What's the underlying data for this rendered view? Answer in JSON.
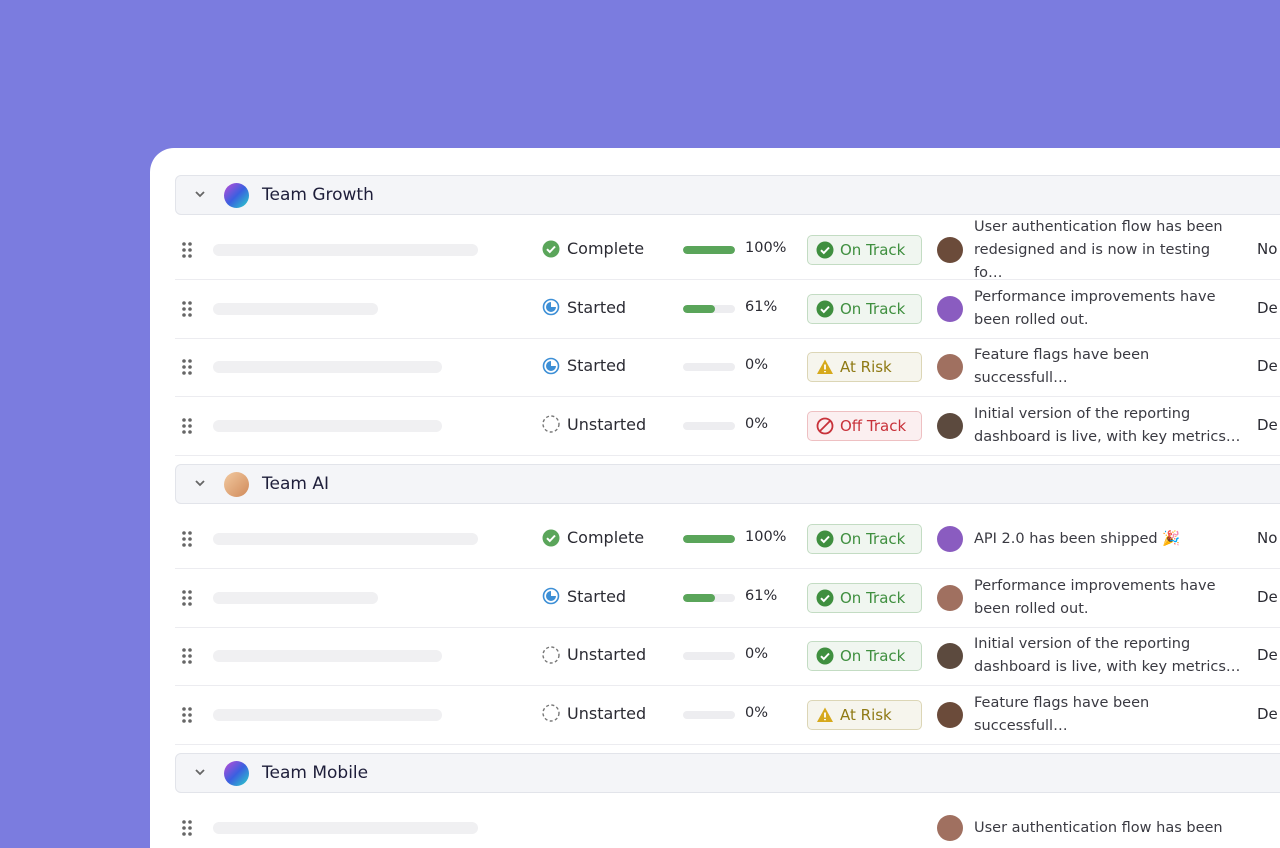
{
  "groups": [
    {
      "name": "Team Growth",
      "rows": [
        {
          "status": {
            "label": "Complete",
            "icon": "check",
            "color": "#5aa55a"
          },
          "progress": {
            "value": 100,
            "label": "100%"
          },
          "health": {
            "label": "On Track",
            "icon": "check",
            "color": "#3f8f3f"
          },
          "update": "User authentication flow has been redesigned and is now in testing fo…",
          "date": "No"
        },
        {
          "status": {
            "label": "Started",
            "icon": "half",
            "color": "#3d8fd6"
          },
          "progress": {
            "value": 61,
            "label": "61%"
          },
          "health": {
            "label": "On Track",
            "icon": "check",
            "color": "#3f8f3f"
          },
          "update": "Performance improvements have been rolled out.",
          "date": "De"
        },
        {
          "status": {
            "label": "Started",
            "icon": "half",
            "color": "#3d8fd6"
          },
          "progress": {
            "value": 0,
            "label": "0%"
          },
          "health": {
            "label": "At Risk",
            "icon": "warn",
            "color": "#8f7a14"
          },
          "update": "Feature flags have been successfull…",
          "date": "De"
        },
        {
          "status": {
            "label": "Unstarted",
            "icon": "dashed",
            "color": "#777777"
          },
          "progress": {
            "value": 0,
            "label": "0%"
          },
          "health": {
            "label": "Off Track",
            "icon": "ban",
            "color": "#c8323a"
          },
          "update": "Initial version of the reporting dashboard is live, with key metrics…",
          "date": "De"
        }
      ]
    },
    {
      "name": "Team AI",
      "rows": [
        {
          "status": {
            "label": "Complete",
            "icon": "check",
            "color": "#5aa55a"
          },
          "progress": {
            "value": 100,
            "label": "100%"
          },
          "health": {
            "label": "On Track",
            "icon": "check",
            "color": "#3f8f3f"
          },
          "update": "API 2.0 has been shipped 🎉",
          "date": "No"
        },
        {
          "status": {
            "label": "Started",
            "icon": "half",
            "color": "#3d8fd6"
          },
          "progress": {
            "value": 61,
            "label": "61%"
          },
          "health": {
            "label": "On Track",
            "icon": "check",
            "color": "#3f8f3f"
          },
          "update": "Performance improvements have been rolled out.",
          "date": "De"
        },
        {
          "status": {
            "label": "Unstarted",
            "icon": "dashed",
            "color": "#777777"
          },
          "progress": {
            "value": 0,
            "label": "0%"
          },
          "health": {
            "label": "On Track",
            "icon": "check",
            "color": "#3f8f3f"
          },
          "update": "Initial version of the reporting dashboard is live, with key metrics…",
          "date": "De"
        },
        {
          "status": {
            "label": "Unstarted",
            "icon": "dashed",
            "color": "#777777"
          },
          "progress": {
            "value": 0,
            "label": "0%"
          },
          "health": {
            "label": "At Risk",
            "icon": "warn",
            "color": "#8f7a14"
          },
          "update": "Feature flags have been successfull…",
          "date": "De"
        }
      ]
    },
    {
      "name": "Team Mobile",
      "rows": [
        {
          "update": "User authentication flow has been"
        }
      ]
    }
  ]
}
